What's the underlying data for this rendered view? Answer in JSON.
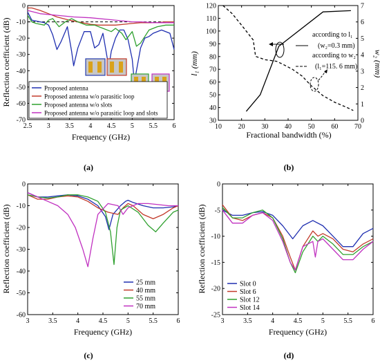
{
  "panel_labels": [
    "(a)",
    "(b)",
    "(c)",
    "(d)"
  ],
  "chart_data": [
    {
      "id": "a",
      "type": "line",
      "xlabel": "Frequency (GHz)",
      "ylabel": "Reflection coefficient (dB)",
      "xlim": [
        2.5,
        6
      ],
      "ylim": [
        -70,
        0
      ],
      "xticks": [
        2.5,
        3,
        3.5,
        4,
        4.5,
        5,
        5.5,
        6
      ],
      "yticks": [
        0,
        -10,
        -20,
        -30,
        -40,
        -50,
        -60,
        -70
      ],
      "grid": false,
      "legend_position": "bottom",
      "reference_line": -10,
      "series": [
        {
          "name": "Proposed antenna",
          "color": "#1f2fb0",
          "x": [
            2.5,
            2.6,
            2.8,
            2.9,
            3.0,
            3.1,
            3.2,
            3.3,
            3.45,
            3.55,
            3.6,
            3.7,
            3.85,
            4.0,
            4.1,
            4.2,
            4.3,
            4.4,
            4.45,
            4.5,
            4.6,
            4.7,
            4.8,
            4.9,
            5.0,
            5.05,
            5.1,
            5.2,
            5.3,
            5.4,
            5.5,
            5.7,
            5.9,
            6.0
          ],
          "y": [
            -4,
            -9,
            -10,
            -10.5,
            -12,
            -18,
            -27,
            -22,
            -13,
            -28,
            -37,
            -26,
            -16,
            -16,
            -26,
            -24,
            -17,
            -32,
            -36,
            -28,
            -20,
            -15,
            -15,
            -21,
            -33,
            -47,
            -40,
            -26,
            -20,
            -19,
            -17,
            -15,
            -17,
            -27
          ]
        },
        {
          "name": "Proposed antenna w/o parasitic loop",
          "color": "#c23a2a",
          "x": [
            2.5,
            2.6,
            2.8,
            3.0,
            3.2,
            3.5,
            3.8,
            4.0,
            4.2,
            4.4,
            4.6,
            4.8,
            5.0,
            5.2,
            5.4,
            5.6,
            5.8,
            6.0
          ],
          "y": [
            -1.5,
            -1.5,
            -3,
            -5,
            -7,
            -9,
            -10.5,
            -11.5,
            -12,
            -12,
            -12,
            -11.5,
            -11,
            -10.5,
            -10.5,
            -10.5,
            -10,
            -10
          ]
        },
        {
          "name": "Proposed antenna w/o  slots",
          "color": "#2ea02e",
          "x": [
            2.5,
            2.6,
            2.7,
            2.9,
            3.0,
            3.1,
            3.25,
            3.4,
            3.55,
            3.7,
            3.9,
            4.1,
            4.3,
            4.5,
            4.6,
            4.75,
            4.85,
            5.0,
            5.1,
            5.2,
            5.3,
            5.4,
            5.6,
            5.8,
            6.0
          ],
          "y": [
            -6,
            -10,
            -11,
            -12,
            -9,
            -8,
            -13,
            -10,
            -8,
            -10,
            -12,
            -12,
            -14,
            -16,
            -14,
            -17,
            -21,
            -16,
            -25,
            -23,
            -19,
            -15,
            -13,
            -12,
            -12
          ]
        },
        {
          "name": "Proposed antenna w/o parasitic loop and slots",
          "color": "#c030c0",
          "x": [
            2.5,
            2.8,
            3.2,
            3.6,
            4.0,
            4.4,
            4.8,
            5.0,
            5.2,
            5.5,
            5.8,
            6.0
          ],
          "y": [
            -3,
            -5,
            -6,
            -7,
            -7.5,
            -8.5,
            -9.5,
            -10,
            -10,
            -10.5,
            -10.5,
            -10.5
          ]
        }
      ]
    },
    {
      "id": "b",
      "type": "line",
      "xlabel": "Fractional bandwidth (%)",
      "ylabel": "l₁ (mm)",
      "ylabel_right": "w₂ (mm)",
      "xlim": [
        10,
        70
      ],
      "ylim": [
        30,
        120
      ],
      "ylim_right": [
        0,
        7
      ],
      "xticks": [
        10,
        20,
        30,
        40,
        50,
        60,
        70
      ],
      "yticks": [
        30,
        40,
        50,
        60,
        70,
        80,
        90,
        100,
        110,
        120
      ],
      "yticks_right": [
        0,
        1,
        2,
        3,
        4,
        5,
        6,
        7
      ],
      "grid": false,
      "series": [
        {
          "name": "according to l₁",
          "name_sub": "(w₂=0.3 mm)",
          "axis": "left",
          "style": "solid",
          "color": "#000000",
          "x": [
            22,
            28,
            36,
            55,
            67
          ],
          "y": [
            37,
            50,
            88,
            115,
            116
          ]
        },
        {
          "name": "according to w₂",
          "name_sub": "(l₁=115. 6 mm)",
          "axis": "right",
          "style": "dashed",
          "color": "#000000",
          "x": [
            12,
            16,
            20,
            25,
            26,
            30,
            35,
            38,
            42,
            46,
            50,
            55,
            60,
            65,
            68
          ],
          "y": [
            7,
            6.5,
            5.8,
            4.9,
            3.9,
            3.7,
            3.6,
            3.4,
            3.1,
            2.7,
            2.1,
            1.5,
            1.1,
            0.8,
            0.6
          ]
        }
      ]
    },
    {
      "id": "c",
      "type": "line",
      "xlabel": "Frequency (GHz)",
      "ylabel": "Reflection coefficient (dB)",
      "xlim": [
        3,
        6
      ],
      "ylim": [
        -60,
        0
      ],
      "xticks": [
        3,
        3.5,
        4,
        4.5,
        5,
        5.5,
        6
      ],
      "yticks": [
        0,
        -10,
        -20,
        -30,
        -40,
        -50,
        -60
      ],
      "grid": false,
      "legend_position": "bottom-right",
      "series": [
        {
          "name": "25 mm",
          "color": "#1f2fb0",
          "x": [
            3.0,
            3.2,
            3.4,
            3.6,
            3.8,
            4.0,
            4.2,
            4.4,
            4.55,
            4.62,
            4.7,
            4.85,
            4.95,
            5.0,
            5.1,
            5.3,
            5.5,
            5.7,
            5.9,
            6.0
          ],
          "y": [
            -4,
            -6,
            -6,
            -5.5,
            -5,
            -5.5,
            -7,
            -10,
            -15,
            -21,
            -14,
            -10,
            -8,
            -7.5,
            -8.5,
            -10,
            -11,
            -11,
            -10.5,
            -10
          ]
        },
        {
          "name": "40 mm",
          "color": "#c23a2a",
          "x": [
            3.0,
            3.2,
            3.4,
            3.6,
            3.8,
            4.0,
            4.2,
            4.4,
            4.6,
            4.8,
            4.9,
            5.0,
            5.1,
            5.3,
            5.5,
            5.7,
            5.9,
            6.0
          ],
          "y": [
            -5,
            -7,
            -7,
            -6,
            -5.5,
            -6,
            -8,
            -11,
            -13,
            -14,
            -11,
            -9,
            -10,
            -14,
            -16,
            -14,
            -11,
            -10
          ]
        },
        {
          "name": "55 mm",
          "color": "#2ea02e",
          "x": [
            3.0,
            3.2,
            3.4,
            3.6,
            3.8,
            4.0,
            4.2,
            4.4,
            4.55,
            4.65,
            4.72,
            4.78,
            4.85,
            5.0,
            5.2,
            5.4,
            5.55,
            5.7,
            5.9,
            6.0
          ],
          "y": [
            -5,
            -6,
            -6.5,
            -6,
            -5,
            -5,
            -6,
            -8,
            -13,
            -22,
            -37,
            -20,
            -12,
            -10,
            -13,
            -19,
            -22,
            -18,
            -13,
            -12
          ]
        },
        {
          "name": "70 mm",
          "color": "#c030c0",
          "x": [
            3.0,
            3.2,
            3.4,
            3.6,
            3.8,
            3.95,
            4.1,
            4.2,
            4.3,
            4.4,
            4.6,
            4.8,
            4.9,
            5.0,
            5.2,
            5.4,
            5.6,
            5.8,
            6.0
          ],
          "y": [
            -4,
            -6,
            -8,
            -10,
            -14,
            -20,
            -30,
            -38,
            -25,
            -14,
            -9,
            -10,
            -14,
            -11,
            -9,
            -9,
            -9.5,
            -10,
            -10
          ]
        }
      ]
    },
    {
      "id": "d",
      "type": "line",
      "xlabel": "Frequency (GHz)",
      "ylabel": "Reflection coefficient (dB)",
      "xlim": [
        3,
        6
      ],
      "ylim": [
        -25,
        0
      ],
      "xticks": [
        3,
        3.5,
        4,
        4.5,
        5,
        5.5,
        6
      ],
      "yticks": [
        0,
        -5,
        -10,
        -15,
        -20,
        -25
      ],
      "grid": false,
      "legend_position": "bottom-left",
      "series": [
        {
          "name": "Slot 0",
          "color": "#1f2fb0",
          "x": [
            3.0,
            3.2,
            3.4,
            3.6,
            3.8,
            4.0,
            4.2,
            4.4,
            4.6,
            4.8,
            5.0,
            5.2,
            5.4,
            5.6,
            5.8,
            6.0
          ],
          "y": [
            -5,
            -6,
            -6,
            -5.5,
            -5.3,
            -6,
            -8,
            -10.5,
            -8,
            -7,
            -8,
            -10,
            -12,
            -12,
            -9.5,
            -8.5
          ]
        },
        {
          "name": "Slot 6",
          "color": "#c23a2a",
          "x": [
            3.0,
            3.2,
            3.4,
            3.6,
            3.8,
            4.0,
            4.2,
            4.35,
            4.45,
            4.6,
            4.8,
            4.9,
            5.0,
            5.2,
            5.4,
            5.6,
            5.8,
            6.0
          ],
          "y": [
            -4,
            -6.5,
            -7,
            -6,
            -5.5,
            -6.5,
            -10,
            -14,
            -16.5,
            -12,
            -9,
            -10,
            -9.5,
            -10.5,
            -12.5,
            -13,
            -11.5,
            -10.5
          ]
        },
        {
          "name": "Slot 12",
          "color": "#2ea02e",
          "x": [
            3.0,
            3.2,
            3.4,
            3.6,
            3.8,
            4.0,
            4.2,
            4.35,
            4.45,
            4.6,
            4.8,
            4.9,
            5.0,
            5.2,
            5.4,
            5.6,
            5.8,
            6.0
          ],
          "y": [
            -4.5,
            -6.5,
            -6.5,
            -5.5,
            -5,
            -6.5,
            -10.5,
            -15,
            -17,
            -13,
            -10,
            -11,
            -10,
            -11.5,
            -13.5,
            -13.5,
            -12,
            -11
          ]
        },
        {
          "name": "Slot 14",
          "color": "#c030c0",
          "x": [
            3.0,
            3.2,
            3.4,
            3.6,
            3.8,
            4.0,
            4.2,
            4.35,
            4.45,
            4.6,
            4.8,
            4.85,
            4.9,
            5.0,
            5.2,
            5.4,
            5.6,
            5.8,
            6.0
          ],
          "y": [
            -5,
            -7.5,
            -7.5,
            -6,
            -5.5,
            -7,
            -11,
            -15,
            -16.5,
            -12,
            -11,
            -14,
            -11,
            -10.5,
            -12.5,
            -14.5,
            -14.5,
            -12.5,
            -11
          ]
        }
      ]
    }
  ]
}
